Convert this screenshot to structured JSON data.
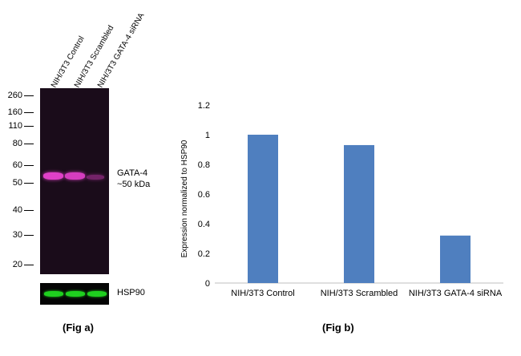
{
  "fig_a": {
    "lanes": [
      "NIH/3T3 Control",
      "NIH/3T3 Scrambled",
      "NIH/3T3 GATA-4 siRNA"
    ],
    "markers": [
      "260",
      "160",
      "110",
      "80",
      "60",
      "50",
      "40",
      "30",
      "20"
    ],
    "band_label_line1": "GATA-4",
    "band_label_line2": "~50 kDa",
    "loading_label": "HSP90",
    "caption": "(Fig a)",
    "band_color": "#e040c8",
    "loading_color": "#1fd01f"
  },
  "fig_b": {
    "caption": "(Fig b)"
  },
  "chart_data": {
    "type": "bar",
    "categories": [
      "NIH/3T3 Control",
      "NIH/3T3 Scrambled",
      "NIH/3T3 GATA-4 siRNA"
    ],
    "values": [
      1.0,
      0.93,
      0.32
    ],
    "title": "",
    "xlabel": "",
    "ylabel": "Expression  normalized to HSP90",
    "ylim": [
      0,
      1.2
    ],
    "yticks": [
      "0",
      "0.2",
      "0.4",
      "0.6",
      "0.8",
      "1",
      "1.2"
    ],
    "bar_color": "#4f7fbf",
    "grid": false
  }
}
